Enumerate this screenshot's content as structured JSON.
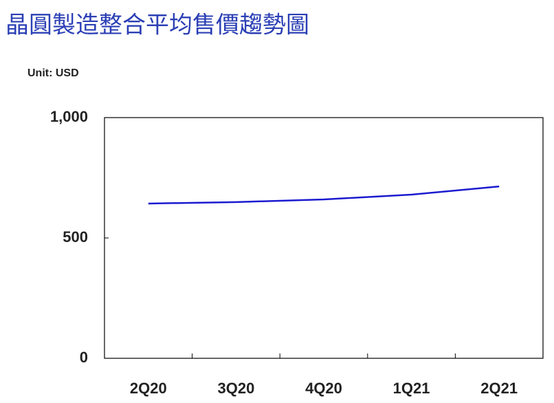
{
  "chart_data": {
    "type": "line",
    "title": "晶圓製造整合平均售價趨勢圖",
    "subtitle": "Unit: USD",
    "categories": [
      "2Q20",
      "3Q20",
      "4Q20",
      "1Q21",
      "2Q21"
    ],
    "series": [
      {
        "color": "#1a1ad0",
        "values": [
          643,
          649,
          660,
          680,
          714
        ]
      }
    ],
    "ylim": [
      0,
      1000
    ],
    "yticks": [
      0,
      500,
      {
        "value": 1000,
        "label": "1,000"
      }
    ]
  }
}
